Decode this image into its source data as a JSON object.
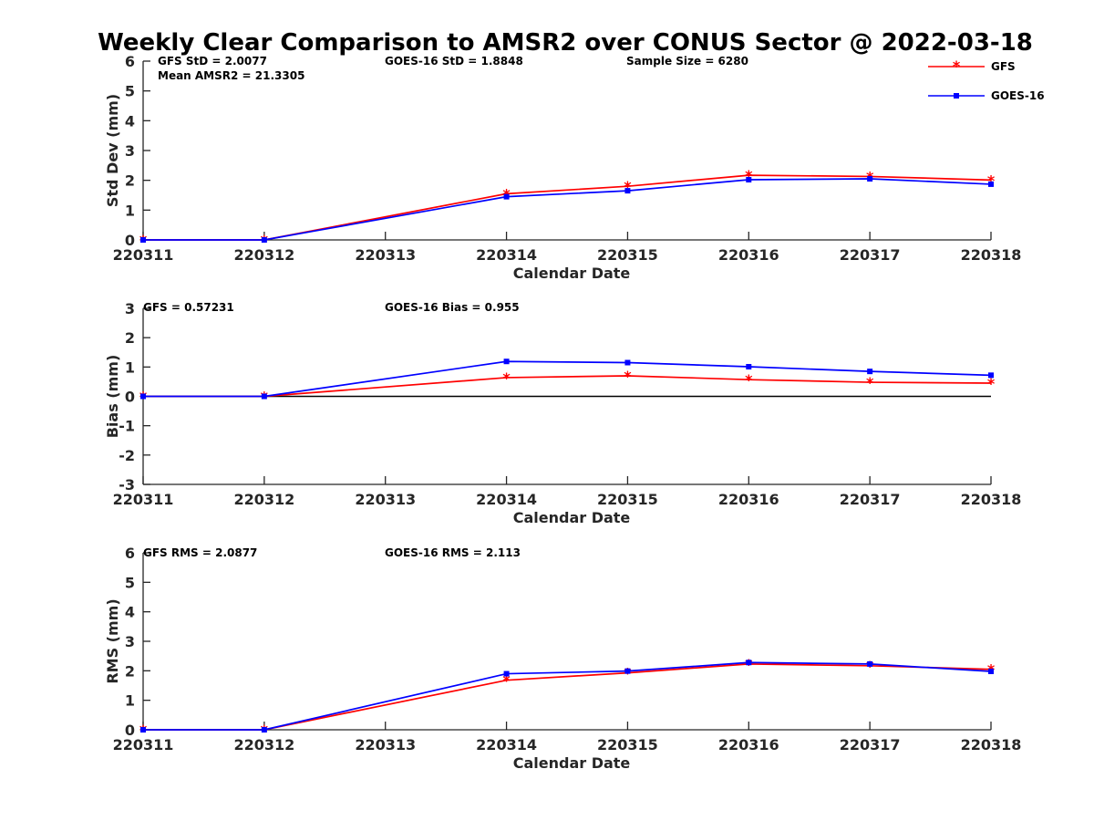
{
  "figure": {
    "title": "Weekly Clear Comparison to AMSR2 over CONUS Sector @ 2022-03-18"
  },
  "legend": {
    "placement": "top-right",
    "items": [
      {
        "label": "GFS",
        "color": "#ff0000",
        "marker": "asterisk"
      },
      {
        "label": "GOES-16",
        "color": "#0000ff",
        "marker": "square"
      }
    ]
  },
  "colors": {
    "gfs": "#ff0000",
    "goes": "#0000ff",
    "axis": "#262626",
    "zero_line": "#000000"
  },
  "chart_data": [
    {
      "type": "line",
      "title": "",
      "xlabel": "Calendar Date",
      "ylabel": "Std Dev (mm)",
      "categories": [
        "220311",
        "220312",
        "220313",
        "220314",
        "220315",
        "220316",
        "220317",
        "220318"
      ],
      "yticks": [
        "0",
        "1",
        "2",
        "3",
        "4",
        "5",
        "6"
      ],
      "ylim": [
        0,
        6
      ],
      "zero_line": false,
      "annotations": [
        "GFS StD = 2.0077",
        "GOES-16 StD = 1.8848",
        "Sample Size = 6280",
        "Mean AMSR2 = 21.3305"
      ],
      "series": [
        {
          "name": "GFS",
          "x": [
            0,
            1,
            3,
            4,
            5,
            6,
            7
          ],
          "values": [
            0,
            0,
            1.55,
            1.8,
            2.17,
            2.13,
            2.01
          ]
        },
        {
          "name": "GOES-16",
          "x": [
            0,
            1,
            3,
            4,
            5,
            6,
            7
          ],
          "values": [
            0,
            0,
            1.45,
            1.65,
            2.02,
            2.05,
            1.87
          ]
        }
      ]
    },
    {
      "type": "line",
      "title": "",
      "xlabel": "Calendar Date",
      "ylabel": "Bias (mm)",
      "categories": [
        "220311",
        "220312",
        "220313",
        "220314",
        "220315",
        "220316",
        "220317",
        "220318"
      ],
      "yticks": [
        "-3",
        "-2",
        "-1",
        "0",
        "1",
        "2",
        "3"
      ],
      "ylim": [
        -3,
        3
      ],
      "zero_line": true,
      "annotations": [
        "GFS = 0.57231",
        "GOES-16 Bias  = 0.955"
      ],
      "series": [
        {
          "name": "GFS",
          "x": [
            0,
            1,
            3,
            4,
            5,
            6,
            7
          ],
          "values": [
            0,
            0,
            0.64,
            0.7,
            0.57,
            0.48,
            0.45
          ]
        },
        {
          "name": "GOES-16",
          "x": [
            0,
            1,
            3,
            4,
            5,
            6,
            7
          ],
          "values": [
            0,
            0,
            1.19,
            1.15,
            1.01,
            0.85,
            0.72
          ]
        }
      ]
    },
    {
      "type": "line",
      "title": "",
      "xlabel": "Calendar Date",
      "ylabel": "RMS (mm)",
      "categories": [
        "220311",
        "220312",
        "220313",
        "220314",
        "220315",
        "220316",
        "220317",
        "220318"
      ],
      "yticks": [
        "0",
        "1",
        "2",
        "3",
        "4",
        "5",
        "6"
      ],
      "ylim": [
        0,
        6
      ],
      "zero_line": false,
      "annotations": [
        "GFS RMS = 2.0877",
        "GOES-16 RMS = 2.113"
      ],
      "series": [
        {
          "name": "GFS",
          "x": [
            0,
            1,
            3,
            4,
            5,
            6,
            7
          ],
          "values": [
            0,
            0,
            1.68,
            1.93,
            2.23,
            2.17,
            2.05
          ]
        },
        {
          "name": "GOES-16",
          "x": [
            0,
            1,
            3,
            4,
            5,
            6,
            7
          ],
          "values": [
            0,
            0,
            1.9,
            1.99,
            2.28,
            2.23,
            1.98
          ]
        }
      ]
    }
  ]
}
